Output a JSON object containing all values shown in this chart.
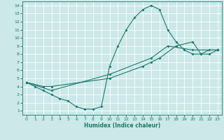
{
  "xlabel": "Humidex (Indice chaleur)",
  "bg_color": "#cce8e8",
  "grid_color": "#ffffff",
  "line_color": "#1a7a6e",
  "xlim": [
    -0.5,
    23.5
  ],
  "ylim": [
    0.5,
    14.5
  ],
  "xticks": [
    0,
    1,
    2,
    3,
    4,
    5,
    6,
    7,
    8,
    9,
    10,
    11,
    12,
    13,
    14,
    15,
    16,
    17,
    18,
    19,
    20,
    21,
    22,
    23
  ],
  "yticks": [
    1,
    2,
    3,
    4,
    5,
    6,
    7,
    8,
    9,
    10,
    11,
    12,
    13,
    14
  ],
  "line1_x": [
    0,
    1,
    2,
    3,
    4,
    5,
    6,
    7,
    8,
    9,
    10,
    11,
    12,
    13,
    14,
    15,
    16,
    17,
    18,
    19,
    20,
    21,
    22,
    23
  ],
  "line1_y": [
    4.5,
    4.0,
    3.5,
    3.0,
    2.5,
    2.2,
    1.5,
    1.2,
    1.2,
    1.5,
    6.5,
    9.0,
    11.0,
    12.5,
    13.5,
    14.0,
    13.5,
    11.0,
    9.5,
    8.5,
    8.0,
    8.0,
    8.5,
    8.5
  ],
  "line2_x": [
    0,
    2,
    3,
    10,
    14,
    15,
    16,
    18,
    20,
    21,
    22,
    23
  ],
  "line2_y": [
    4.5,
    4.0,
    4.0,
    5.0,
    6.5,
    7.0,
    7.5,
    9.0,
    9.5,
    8.0,
    8.0,
    8.5
  ],
  "line3_x": [
    0,
    3,
    10,
    15,
    17,
    20,
    23
  ],
  "line3_y": [
    4.5,
    3.5,
    5.5,
    7.5,
    9.0,
    8.5,
    8.5
  ]
}
